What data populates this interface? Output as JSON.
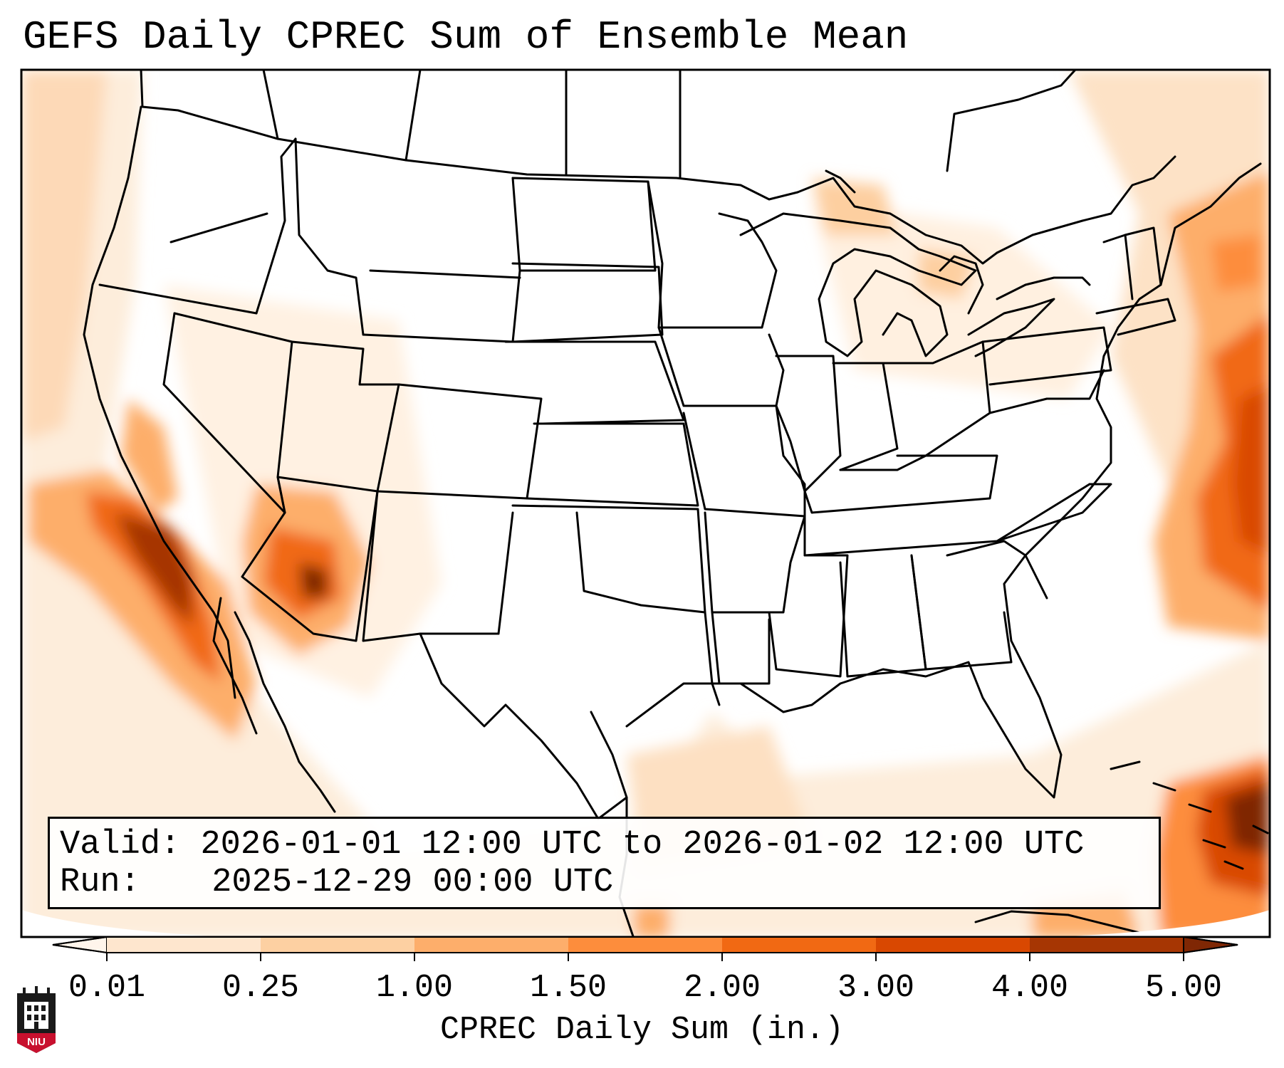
{
  "title": "GEFS Daily CPREC Sum of Ensemble Mean",
  "info": {
    "valid_label": "Valid:",
    "valid_value": "2026-01-01 12:00 UTC to 2026-01-02 12:00 UTC",
    "run_label": "Run:",
    "run_value": "2025-12-29 00:00 UTC"
  },
  "colorbar": {
    "label": "CPREC Daily Sum (in.)",
    "ticks": [
      "0.01",
      "0.25",
      "1.00",
      "1.50",
      "2.00",
      "3.00",
      "4.00",
      "5.00"
    ],
    "colors": [
      "#fff5eb",
      "#fee6ce",
      "#fdd0a2",
      "#fdae6b",
      "#fd8d3c",
      "#f16913",
      "#d94801",
      "#a63603",
      "#7f2704"
    ]
  },
  "logo": {
    "text": "NIU",
    "colors": {
      "red": "#c8102e",
      "black": "#1a1a1a"
    }
  },
  "precip_levels": {
    "pacific_coast": "3.00",
    "arizona_max": "4.00",
    "atlantic_max": "4.00",
    "bahamas_max": "5.00",
    "great_lakes": "0.25"
  }
}
